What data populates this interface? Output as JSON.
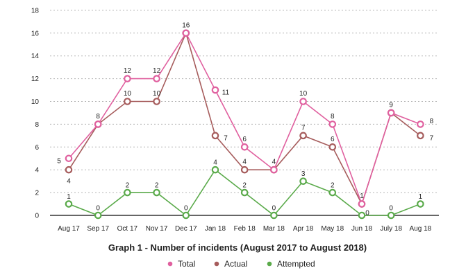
{
  "chart_data": {
    "type": "line",
    "title": "Graph 1 - Number of incidents (August 2017 to August 2018)",
    "categories": [
      "Aug 17",
      "Sep 17",
      "Oct 17",
      "Nov 17",
      "Dec 17",
      "Jan 18",
      "Feb 18",
      "Mar 18",
      "Apr 18",
      "May 18",
      "Jun 18",
      "July 18",
      "Aug 18"
    ],
    "ylim": [
      0,
      18
    ],
    "yticks": [
      0,
      2,
      4,
      6,
      8,
      10,
      12,
      14,
      16,
      18
    ],
    "grid": true,
    "legend_position": "bottom",
    "series": [
      {
        "name": "Total",
        "color": "#e0609f",
        "values": [
          5,
          8,
          12,
          12,
          16,
          11,
          6,
          4,
          10,
          8,
          1,
          9,
          8
        ]
      },
      {
        "name": "Actual",
        "color": "#a65c5c",
        "values": [
          4,
          8,
          10,
          10,
          16,
          7,
          4,
          4,
          7,
          6,
          1,
          9,
          7
        ]
      },
      {
        "name": "Attempted",
        "color": "#5aaa4a",
        "values": [
          1,
          0,
          2,
          2,
          0,
          4,
          2,
          0,
          3,
          2,
          0,
          0,
          1
        ]
      }
    ]
  }
}
